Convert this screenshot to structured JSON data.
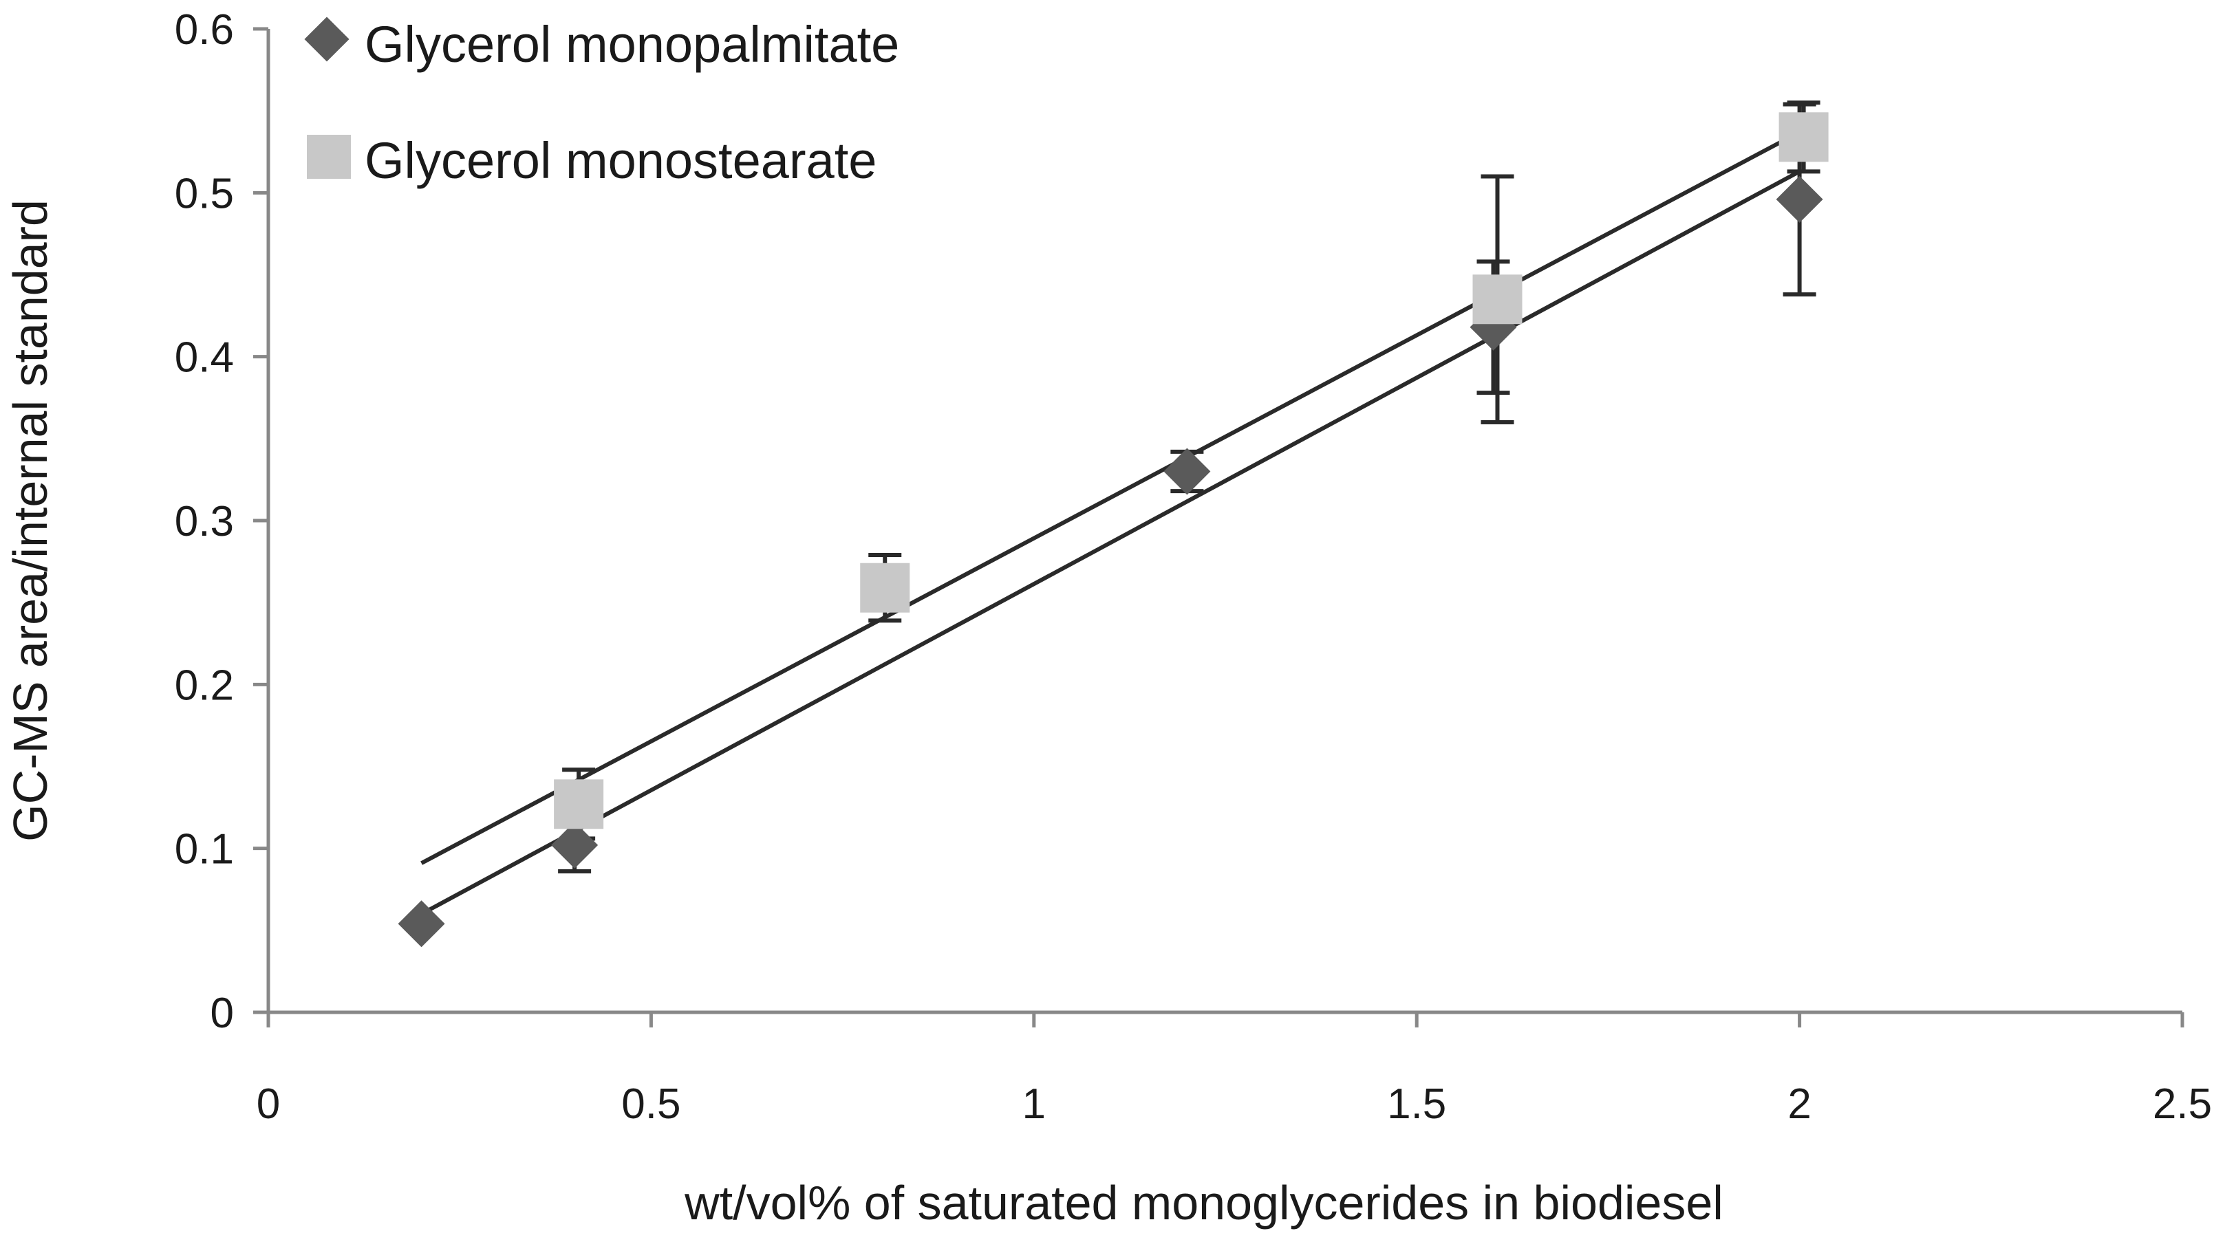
{
  "chart_data": {
    "type": "scatter",
    "title": "",
    "xlabel": "wt/vol% of saturated monoglycerides in biodiesel",
    "ylabel": "GC-MS area/internal  standard",
    "xlim": [
      0,
      2.5
    ],
    "ylim": [
      0,
      0.6
    ],
    "x_ticks": [
      "0",
      "0.5",
      "1",
      "1.5",
      "2",
      "2.5"
    ],
    "y_ticks": [
      "0",
      "0.1",
      "0.2",
      "0.3",
      "0.4",
      "0.5",
      "0.6"
    ],
    "grid": false,
    "legend_position": "top-left",
    "series": [
      {
        "name": "Glycerol monopalmitate",
        "marker": "diamond",
        "color": "#5a5a5a",
        "points": [
          {
            "x": 0.2,
            "y": 0.054,
            "err": 0
          },
          {
            "x": 0.4,
            "y": 0.102,
            "err": 0.016
          },
          {
            "x": 1.2,
            "y": 0.33,
            "err": 0.012
          },
          {
            "x": 1.6,
            "y": 0.418,
            "err": 0.04
          },
          {
            "x": 2.0,
            "y": 0.496,
            "err": 0.058
          }
        ],
        "trendline": {
          "x0": 0.2,
          "y0": 0.06,
          "x1": 2.0,
          "y1": 0.513
        }
      },
      {
        "name": "Glycerol monostearate",
        "marker": "square",
        "color": "#c8c8c8",
        "points": [
          {
            "x": 0.4,
            "y": 0.127,
            "err": 0.021
          },
          {
            "x": 0.8,
            "y": 0.259,
            "err": 0.02
          },
          {
            "x": 1.6,
            "y": 0.435,
            "err": 0.075
          },
          {
            "x": 2.0,
            "y": 0.534,
            "err": 0.021
          }
        ],
        "trendline": {
          "x0": 0.2,
          "y0": 0.091,
          "x1": 2.0,
          "y1": 0.537
        }
      }
    ]
  }
}
